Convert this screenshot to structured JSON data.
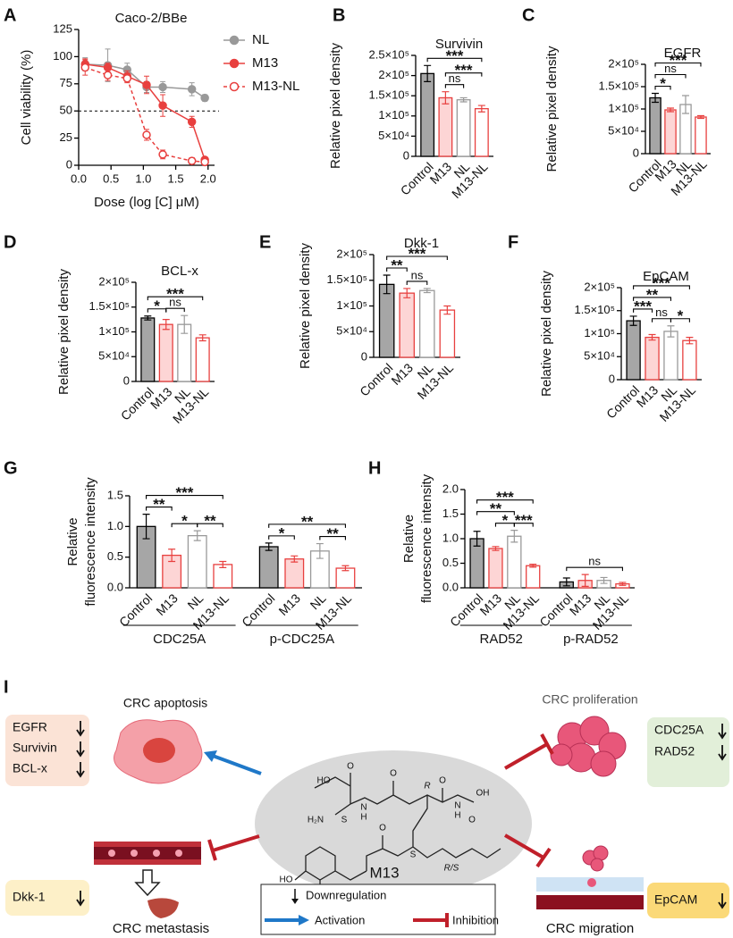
{
  "chart_data": [
    {
      "panel": "A",
      "type": "line",
      "title": "Caco-2/BBe",
      "xlabel": "Dose (log [C] μM)",
      "ylabel": "Cell viability (%)",
      "x": [
        0.1,
        0.45,
        0.75,
        1.05,
        1.3,
        1.75,
        1.95
      ],
      "series": [
        {
          "name": "NL",
          "color": "#999999",
          "marker": "filled",
          "dashed": false,
          "values": [
            93,
            92,
            88,
            72,
            72,
            70,
            62
          ],
          "errors": [
            6,
            15,
            6,
            5,
            5,
            6,
            3
          ]
        },
        {
          "name": "M13",
          "color": "#e8403f",
          "marker": "filled",
          "dashed": false,
          "values": [
            93,
            90,
            82,
            74,
            55,
            40,
            5
          ],
          "errors": [
            5,
            4,
            5,
            8,
            10,
            5,
            2
          ]
        },
        {
          "name": "M13-NL",
          "color": "#e8403f",
          "marker": "open",
          "dashed": true,
          "values": [
            90,
            83,
            80,
            28,
            10,
            4,
            3
          ],
          "errors": [
            7,
            5,
            4,
            5,
            4,
            3,
            2
          ]
        }
      ],
      "xlim": [
        0,
        2.1
      ],
      "xticks": [
        {
          "value": 0,
          "label": "0.0"
        },
        0.5,
        {
          "value": 1,
          "label": "1.0"
        },
        1.5,
        {
          "value": 2,
          "label": "2.0"
        }
      ],
      "ylim": [
        0,
        125
      ],
      "yticks": [
        0,
        25,
        50,
        75,
        100,
        125
      ],
      "reference_line": 50
    },
    {
      "panel": "B",
      "type": "bar",
      "title": "Survivin",
      "ylabel": "Relative pixel density",
      "categories": [
        "Control",
        "M13",
        "NL",
        "M13-NL"
      ],
      "values": [
        205000,
        145000,
        140000,
        118000
      ],
      "errors": [
        20000,
        15000,
        5000,
        8000
      ],
      "colors": [
        "#a6a6a6",
        "#fdd5d5",
        "#ffffff",
        "#ffffff"
      ],
      "edge_colors": [
        "#000000",
        "#e8403f",
        "#999999",
        "#e8403f"
      ],
      "ylim": [
        0,
        250000
      ],
      "yticks": [
        {
          "value": 0,
          "label": "0"
        },
        {
          "value": 50000,
          "label": "5×10⁴"
        },
        {
          "value": 100000,
          "label": "1×10⁵"
        },
        {
          "value": 150000,
          "label": "1.5×10⁵"
        },
        {
          "value": 200000,
          "label": "2×10⁵"
        },
        {
          "value": 250000,
          "label": "2.5×10⁵"
        }
      ],
      "comparisons": [
        {
          "from": 1,
          "to": 2,
          "label": "ns"
        },
        {
          "from": 1,
          "to": 3,
          "label": "***"
        },
        {
          "from": 0,
          "to": 3,
          "label": "***"
        }
      ]
    },
    {
      "panel": "C",
      "type": "bar",
      "title": "EGFR",
      "ylabel": "Relative pixel density",
      "categories": [
        "Control",
        "M13",
        "NL",
        "M13-NL"
      ],
      "values": [
        125000,
        98000,
        110000,
        82000
      ],
      "errors": [
        10000,
        4000,
        20000,
        3000
      ],
      "colors": [
        "#a6a6a6",
        "#fdd5d5",
        "#ffffff",
        "#ffffff"
      ],
      "edge_colors": [
        "#000000",
        "#e8403f",
        "#999999",
        "#e8403f"
      ],
      "ylim": [
        0,
        200000
      ],
      "yticks": [
        {
          "value": 0,
          "label": "0"
        },
        {
          "value": 50000,
          "label": "5×10⁴"
        },
        {
          "value": 100000,
          "label": "1×10⁵"
        },
        {
          "value": 150000,
          "label": "1.5×10⁵"
        },
        {
          "value": 200000,
          "label": "2×10⁵"
        }
      ],
      "comparisons": [
        {
          "from": 0,
          "to": 1,
          "label": "*"
        },
        {
          "from": 0,
          "to": 2,
          "label": "ns"
        },
        {
          "from": 0,
          "to": 3,
          "label": "***"
        }
      ]
    },
    {
      "panel": "D",
      "type": "bar",
      "title": "BCL-x",
      "ylabel": "Relative pixel density",
      "categories": [
        "Control",
        "M13",
        "NL",
        "M13-NL"
      ],
      "values": [
        128000,
        115000,
        115000,
        88000
      ],
      "errors": [
        4000,
        10000,
        18000,
        6000
      ],
      "colors": [
        "#a6a6a6",
        "#fdd5d5",
        "#ffffff",
        "#ffffff"
      ],
      "edge_colors": [
        "#000000",
        "#e8403f",
        "#999999",
        "#e8403f"
      ],
      "ylim": [
        0,
        200000
      ],
      "yticks": [
        {
          "value": 0,
          "label": "0"
        },
        {
          "value": 50000,
          "label": "5×10⁴"
        },
        {
          "value": 100000,
          "label": "1×10⁵"
        },
        {
          "value": 150000,
          "label": "1.5×10⁵"
        },
        {
          "value": 200000,
          "label": "2×10⁵"
        }
      ],
      "comparisons": [
        {
          "from": 1,
          "to": 2,
          "label": "ns"
        },
        {
          "from": 0,
          "to": 1,
          "label": "*"
        },
        {
          "from": 0,
          "to": 3,
          "label": "***"
        }
      ]
    },
    {
      "panel": "E",
      "type": "bar",
      "title": "Dkk-1",
      "ylabel": "Relative pixel density",
      "categories": [
        "Control",
        "M13",
        "NL",
        "M13-NL"
      ],
      "values": [
        142000,
        125000,
        130000,
        92000
      ],
      "errors": [
        18000,
        9000,
        4000,
        8000
      ],
      "colors": [
        "#a6a6a6",
        "#fdd5d5",
        "#ffffff",
        "#ffffff"
      ],
      "edge_colors": [
        "#000000",
        "#e8403f",
        "#999999",
        "#e8403f"
      ],
      "ylim": [
        0,
        200000
      ],
      "yticks": [
        {
          "value": 0,
          "label": "0"
        },
        {
          "value": 50000,
          "label": "5×10⁴"
        },
        {
          "value": 100000,
          "label": "1×10⁵"
        },
        {
          "value": 150000,
          "label": "1.5×10⁵"
        },
        {
          "value": 200000,
          "label": "2×10⁵"
        }
      ],
      "comparisons": [
        {
          "from": 1,
          "to": 2,
          "label": "ns"
        },
        {
          "from": 0,
          "to": 1,
          "label": "**"
        },
        {
          "from": 0,
          "to": 3,
          "label": "***"
        }
      ]
    },
    {
      "panel": "F",
      "type": "bar",
      "title": "EpCAM",
      "ylabel": "Relative pixel density",
      "categories": [
        "Control",
        "M13",
        "NL",
        "M13-NL"
      ],
      "values": [
        128000,
        92000,
        105000,
        85000
      ],
      "errors": [
        10000,
        6000,
        12000,
        7000
      ],
      "colors": [
        "#a6a6a6",
        "#fdd5d5",
        "#ffffff",
        "#ffffff"
      ],
      "edge_colors": [
        "#000000",
        "#e8403f",
        "#999999",
        "#e8403f"
      ],
      "ylim": [
        0,
        200000
      ],
      "yticks": [
        {
          "value": 0,
          "label": "0"
        },
        {
          "value": 50000,
          "label": "5×10⁴"
        },
        {
          "value": 100000,
          "label": "1×10⁵"
        },
        {
          "value": 150000,
          "label": "1.5×10⁵"
        },
        {
          "value": 200000,
          "label": "2×10⁵"
        }
      ],
      "comparisons": [
        {
          "from": 1,
          "to": 2,
          "label": "ns"
        },
        {
          "from": 2,
          "to": 3,
          "label": "*"
        },
        {
          "from": 0,
          "to": 1,
          "label": "***"
        },
        {
          "from": 0,
          "to": 2,
          "label": "**"
        },
        {
          "from": 0,
          "to": 3,
          "label": "***"
        }
      ]
    },
    {
      "panel": "G",
      "type": "bar",
      "ylabel": [
        "Relative",
        "fluorescence intensity"
      ],
      "categories": [
        "Control",
        "M13",
        "NL",
        "M13-NL",
        "Control",
        "M13",
        "NL",
        "M13-NL"
      ],
      "groups": [
        "CDC25A",
        "p-CDC25A"
      ],
      "values": [
        1.0,
        0.53,
        0.85,
        0.38,
        0.67,
        0.47,
        0.6,
        0.32
      ],
      "errors": [
        0.2,
        0.1,
        0.08,
        0.05,
        0.06,
        0.05,
        0.12,
        0.04
      ],
      "colors": [
        "#a6a6a6",
        "#fdd5d5",
        "#ffffff",
        "#ffffff",
        "#a6a6a6",
        "#fdd5d5",
        "#ffffff",
        "#ffffff"
      ],
      "edge_colors": [
        "#000000",
        "#e8403f",
        "#999999",
        "#e8403f",
        "#000000",
        "#e8403f",
        "#999999",
        "#e8403f"
      ],
      "ylim": [
        0,
        1.5
      ],
      "yticks": [
        {
          "value": 0,
          "label": "0.0"
        },
        0.5,
        {
          "value": 1,
          "label": "1.0"
        },
        1.5
      ],
      "comparisons": [
        {
          "from": 1,
          "to": 2,
          "label": "*"
        },
        {
          "from": 2,
          "to": 3,
          "label": "**"
        },
        {
          "from": 0,
          "to": 1,
          "label": "**"
        },
        {
          "from": 0,
          "to": 3,
          "label": "***"
        },
        {
          "from": 4,
          "to": 5,
          "label": "*"
        },
        {
          "from": 6,
          "to": 7,
          "label": "**"
        },
        {
          "from": 4,
          "to": 7,
          "label": "**"
        }
      ]
    },
    {
      "panel": "H",
      "type": "bar",
      "ylabel": [
        "Relative",
        "fluorescence intensity"
      ],
      "categories": [
        "Control",
        "M13",
        "NL",
        "M13-NL",
        "Control",
        "M13",
        "NL",
        "M13-NL"
      ],
      "groups": [
        "RAD52",
        "p-RAD52"
      ],
      "values": [
        1.0,
        0.8,
        1.05,
        0.45,
        0.12,
        0.15,
        0.15,
        0.08
      ],
      "errors": [
        0.15,
        0.04,
        0.12,
        0.03,
        0.08,
        0.12,
        0.06,
        0.03
      ],
      "colors": [
        "#a6a6a6",
        "#fdd5d5",
        "#ffffff",
        "#ffffff",
        "#a6a6a6",
        "#fdd5d5",
        "#ffffff",
        "#ffffff"
      ],
      "edge_colors": [
        "#000000",
        "#e8403f",
        "#999999",
        "#e8403f",
        "#000000",
        "#e8403f",
        "#999999",
        "#e8403f"
      ],
      "ylim": [
        0,
        2.0
      ],
      "yticks": [
        {
          "value": 0,
          "label": "0.0"
        },
        0.5,
        {
          "value": 1,
          "label": "1.0"
        },
        1.5,
        {
          "value": 2,
          "label": "2.0"
        }
      ],
      "comparisons": [
        {
          "from": 1,
          "to": 2,
          "label": "*"
        },
        {
          "from": 2,
          "to": 3,
          "label": "***"
        },
        {
          "from": 0,
          "to": 2,
          "label": "**"
        },
        {
          "from": 0,
          "to": 3,
          "label": "***"
        },
        {
          "from": 4,
          "to": 7,
          "label": "ns"
        }
      ]
    }
  ],
  "diagram": {
    "panel": "I",
    "center_label": "M13",
    "effects": [
      {
        "title": "CRC apoptosis",
        "markers": [
          "EGFR",
          "Survivin",
          "BCL-x"
        ]
      },
      {
        "title": "CRC proliferation",
        "markers": [
          "CDC25A",
          "RAD52"
        ]
      },
      {
        "title": "CRC metastasis",
        "markers": [
          "Dkk-1"
        ]
      },
      {
        "title": "CRC migration",
        "markers": [
          "EpCAM"
        ]
      }
    ],
    "legend": [
      "Downregulation",
      "Activation",
      "Inhibition"
    ],
    "molecule_labels": [
      "HO",
      "O",
      "H₂N",
      "S",
      "O",
      "N",
      "H",
      "R",
      "O",
      "N",
      "H",
      "OH",
      "O",
      "S",
      "R/S",
      "O",
      "HO"
    ]
  }
}
